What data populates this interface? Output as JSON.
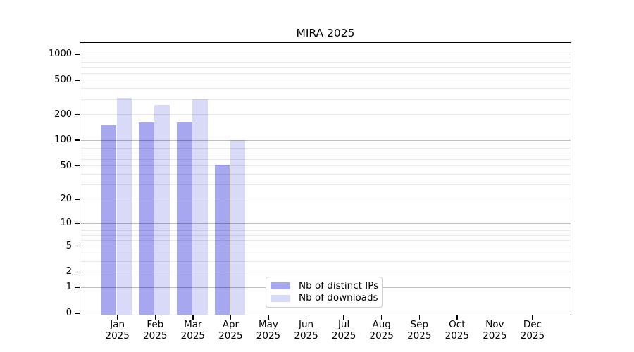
{
  "chart_data": {
    "type": "bar",
    "title": "MIRA 2025",
    "x": {
      "months": [
        "Jan",
        "Feb",
        "Mar",
        "Apr",
        "May",
        "Jun",
        "Jul",
        "Aug",
        "Sep",
        "Oct",
        "Nov",
        "Dec"
      ],
      "year": "2025"
    },
    "y_axis": {
      "scale": "log10(value+1), 0 at baseline",
      "ticks": [
        0,
        1,
        2,
        5,
        10,
        20,
        50,
        100,
        200,
        500,
        1000
      ],
      "ylim": [
        0,
        1000
      ],
      "grid": "major lines at 1,10,100,1000; faint minor lines at 2-9 per decade"
    },
    "series": [
      {
        "name": "Nb of distinct IPs",
        "color": "#a7a7f0",
        "values": [
          150,
          160,
          160,
          52,
          null,
          null,
          null,
          null,
          null,
          null,
          null,
          null
        ]
      },
      {
        "name": "Nb of downloads",
        "color": "#d9d9f8",
        "values": [
          310,
          260,
          300,
          100,
          null,
          null,
          null,
          null,
          null,
          null,
          null,
          null
        ]
      }
    ],
    "legend": {
      "position": "bottom-center"
    }
  }
}
